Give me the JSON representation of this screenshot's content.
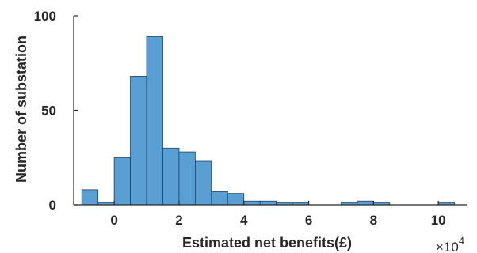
{
  "chart_data": {
    "type": "bar",
    "subtype": "histogram",
    "xlabel": "Estimated net benefits(£)",
    "ylabel": "Number of substation",
    "x_multiplier": "×10",
    "x_multiplier_exponent": "4",
    "bin_width": 0.5,
    "bins": [
      {
        "start": -1.0,
        "end": -0.5,
        "count": 8
      },
      {
        "start": -0.5,
        "end": 0.0,
        "count": 1
      },
      {
        "start": 0.0,
        "end": 0.5,
        "count": 25
      },
      {
        "start": 0.5,
        "end": 1.0,
        "count": 68
      },
      {
        "start": 1.0,
        "end": 1.5,
        "count": 89
      },
      {
        "start": 1.5,
        "end": 2.0,
        "count": 30
      },
      {
        "start": 2.0,
        "end": 2.5,
        "count": 28
      },
      {
        "start": 2.5,
        "end": 3.0,
        "count": 23
      },
      {
        "start": 3.0,
        "end": 3.5,
        "count": 7
      },
      {
        "start": 3.5,
        "end": 4.0,
        "count": 6
      },
      {
        "start": 4.0,
        "end": 4.5,
        "count": 2
      },
      {
        "start": 4.5,
        "end": 5.0,
        "count": 2
      },
      {
        "start": 5.0,
        "end": 5.5,
        "count": 1
      },
      {
        "start": 5.5,
        "end": 6.0,
        "count": 1
      },
      {
        "start": 7.0,
        "end": 7.5,
        "count": 1
      },
      {
        "start": 7.5,
        "end": 8.0,
        "count": 2
      },
      {
        "start": 8.0,
        "end": 8.5,
        "count": 1
      },
      {
        "start": 10.0,
        "end": 10.5,
        "count": 1
      }
    ],
    "xlim": [
      -1.25,
      10.9
    ],
    "ylim": [
      0,
      100
    ],
    "x_ticks": [
      0,
      2,
      4,
      6,
      8,
      10
    ],
    "x_tick_labels": [
      "0",
      "2",
      "4",
      "6",
      "8",
      "10"
    ],
    "y_ticks": [
      0,
      50,
      100
    ],
    "y_tick_labels": [
      "0",
      "50",
      "100"
    ],
    "bar_color": "#5a9fd4",
    "grid": false,
    "legend": "none"
  }
}
